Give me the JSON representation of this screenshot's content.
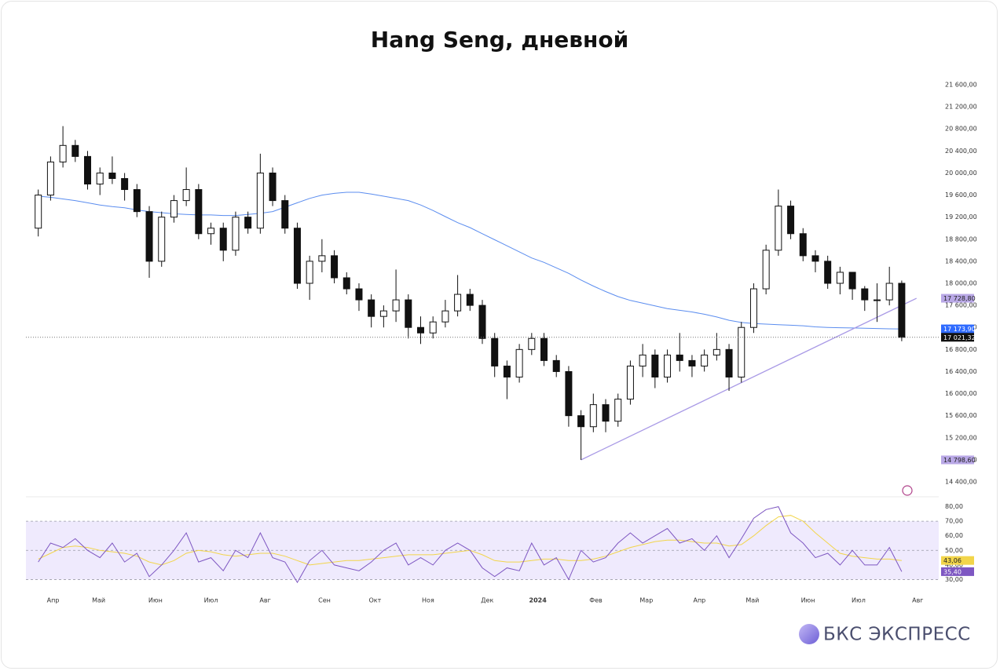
{
  "chart_data": [
    {
      "type": "candlestick",
      "title": "Hang Seng, дневной",
      "x": [
        1,
        2,
        3,
        4,
        5,
        6,
        7,
        8,
        9,
        10,
        11,
        12,
        13,
        14,
        15,
        16,
        17,
        18,
        19,
        20,
        21,
        22,
        23,
        24,
        25,
        26,
        27,
        28,
        29,
        30,
        31,
        32,
        33,
        34,
        35,
        36,
        37,
        38,
        39,
        40,
        41,
        42,
        43,
        44,
        45,
        46,
        47,
        48,
        49,
        50,
        51,
        52,
        53,
        54,
        55,
        56,
        57,
        58,
        59,
        60,
        61,
        62,
        63,
        64,
        65,
        66,
        67,
        68,
        69,
        70,
        71
      ],
      "open": [
        19000,
        19600,
        20200,
        20500,
        20300,
        19800,
        20000,
        19900,
        19700,
        19300,
        18400,
        19200,
        19500,
        19700,
        18900,
        19000,
        18600,
        19200,
        19000,
        20000,
        19500,
        19000,
        18000,
        18400,
        18500,
        18100,
        17900,
        17700,
        17400,
        17500,
        17700,
        17200,
        17100,
        17300,
        17500,
        17800,
        17600,
        17000,
        16500,
        16300,
        16800,
        17000,
        16600,
        16400,
        15600,
        15400,
        15800,
        15500,
        15900,
        16500,
        16700,
        16300,
        16700,
        16600,
        16500,
        16700,
        16800,
        16300,
        17200,
        17900,
        18600,
        19400,
        18900,
        18500,
        18400,
        18000,
        18200,
        17900,
        17700,
        17700,
        18000
      ],
      "high": [
        19700,
        20300,
        20850,
        20600,
        20400,
        20100,
        20300,
        20000,
        19800,
        19400,
        19300,
        19600,
        20100,
        19800,
        19100,
        19100,
        19300,
        19300,
        20350,
        20100,
        19600,
        19100,
        18500,
        18800,
        18600,
        18200,
        18000,
        17800,
        17600,
        18250,
        17800,
        17400,
        17400,
        17700,
        18150,
        17900,
        17700,
        17100,
        16600,
        16900,
        17100,
        17100,
        16700,
        16500,
        15700,
        16000,
        15900,
        16000,
        16600,
        16900,
        16800,
        16800,
        17100,
        16700,
        16800,
        17100,
        16900,
        17300,
        18000,
        18700,
        19700,
        19500,
        19000,
        18600,
        18500,
        18300,
        18200,
        17950,
        18000,
        18300,
        18050
      ],
      "low": [
        18850,
        19500,
        20100,
        20200,
        19700,
        19600,
        19800,
        19500,
        19200,
        18100,
        18300,
        19100,
        19400,
        18800,
        18700,
        18400,
        18500,
        18900,
        18900,
        19400,
        18900,
        17900,
        17700,
        18200,
        18000,
        17800,
        17500,
        17200,
        17200,
        17300,
        17000,
        16900,
        17000,
        17200,
        17400,
        17500,
        16900,
        16300,
        15900,
        16200,
        16700,
        16500,
        16300,
        15400,
        14798.6,
        15300,
        15300,
        15400,
        15800,
        16300,
        16100,
        16200,
        16400,
        16300,
        16400,
        16600,
        16050,
        16200,
        17100,
        17800,
        18500,
        18800,
        18400,
        18200,
        17900,
        17800,
        17700,
        17500,
        17300,
        17600,
        16950
      ],
      "close": [
        19600,
        20200,
        20500,
        20300,
        19800,
        20000,
        19900,
        19700,
        19300,
        18400,
        19200,
        19500,
        19700,
        18900,
        19000,
        18600,
        19200,
        19000,
        20000,
        19500,
        19000,
        18000,
        18400,
        18500,
        18100,
        17900,
        17700,
        17400,
        17500,
        17700,
        17200,
        17100,
        17300,
        17500,
        17800,
        17600,
        17000,
        16500,
        16300,
        16800,
        17000,
        16600,
        16400,
        15600,
        15400,
        15800,
        15500,
        15900,
        16500,
        16700,
        16300,
        16700,
        16600,
        16500,
        16700,
        16800,
        16300,
        17200,
        17900,
        18600,
        19400,
        18900,
        18500,
        18400,
        18000,
        18200,
        17900,
        17700,
        17700,
        18000,
        17021.32
      ],
      "last_close_label": "17 021,32",
      "ma": {
        "color": "#5b8def",
        "values": [
          19580,
          19560,
          19530,
          19500,
          19460,
          19420,
          19390,
          19370,
          19330,
          19300,
          19280,
          19260,
          19250,
          19240,
          19240,
          19230,
          19230,
          19250,
          19270,
          19300,
          19380,
          19460,
          19540,
          19600,
          19630,
          19650,
          19650,
          19620,
          19580,
          19540,
          19500,
          19420,
          19320,
          19210,
          19100,
          19010,
          18900,
          18790,
          18680,
          18570,
          18460,
          18380,
          18280,
          18180,
          18060,
          17950,
          17850,
          17760,
          17690,
          17640,
          17590,
          17540,
          17510,
          17480,
          17440,
          17390,
          17330,
          17290,
          17270,
          17260,
          17250,
          17240,
          17230,
          17210,
          17200,
          17195,
          17190,
          17185,
          17180,
          17175,
          17173.9
        ],
        "last_label": "17 173,90"
      },
      "trendline": {
        "color": "#a99ae6",
        "x": [
          45,
          72.2
        ],
        "values": [
          14798.6,
          17728.8
        ],
        "value_labels": [
          "14 798,60",
          "17 728,80"
        ]
      },
      "xlim": [
        0,
        74
      ],
      "ylim": [
        14400,
        21600
      ],
      "yticks": [
        {
          "value": 14400,
          "label": "14 400,00"
        },
        {
          "value": 14800,
          "label": "14 800,00"
        },
        {
          "value": 15200,
          "label": "15 200,00"
        },
        {
          "value": 15600,
          "label": "15 600,00"
        },
        {
          "value": 16000,
          "label": "16 000,00"
        },
        {
          "value": 16400,
          "label": "16 400,00"
        },
        {
          "value": 16800,
          "label": "16 800,00"
        },
        {
          "value": 17200,
          "label": "17 200,00"
        },
        {
          "value": 17600,
          "label": "17 600,00"
        },
        {
          "value": 18000,
          "label": "18 000,00"
        },
        {
          "value": 18400,
          "label": "18 400,00"
        },
        {
          "value": 18800,
          "label": "18 800,00"
        },
        {
          "value": 19200,
          "label": "19 200,00"
        },
        {
          "value": 19600,
          "label": "19 600,00"
        },
        {
          "value": 20000,
          "label": "20 000,00"
        },
        {
          "value": 20400,
          "label": "20 400,00"
        },
        {
          "value": 20800,
          "label": "20 800,00"
        },
        {
          "value": 21200,
          "label": "21 200,00"
        },
        {
          "value": 21600,
          "label": "21 600,00"
        }
      ]
    },
    {
      "type": "rsi",
      "x": [
        1,
        2,
        3,
        4,
        5,
        6,
        7,
        8,
        9,
        10,
        11,
        12,
        13,
        14,
        15,
        16,
        17,
        18,
        19,
        20,
        21,
        22,
        23,
        24,
        25,
        26,
        27,
        28,
        29,
        30,
        31,
        32,
        33,
        34,
        35,
        36,
        37,
        38,
        39,
        40,
        41,
        42,
        43,
        44,
        45,
        46,
        47,
        48,
        49,
        50,
        51,
        52,
        53,
        54,
        55,
        56,
        57,
        58,
        59,
        60,
        61,
        62,
        63,
        64,
        65,
        66,
        67,
        68,
        69,
        70,
        71
      ],
      "rsi": {
        "color": "#7e57c2",
        "values": [
          42,
          55,
          52,
          58,
          50,
          45,
          55,
          42,
          48,
          32,
          40,
          50,
          62,
          42,
          45,
          36,
          50,
          45,
          62,
          45,
          42,
          28,
          43,
          50,
          40,
          38,
          36,
          42,
          50,
          55,
          40,
          45,
          40,
          50,
          55,
          50,
          38,
          32,
          38,
          36,
          55,
          40,
          45,
          30,
          50,
          42,
          45,
          55,
          62,
          55,
          60,
          65,
          55,
          58,
          50,
          60,
          45,
          58,
          72,
          78,
          80,
          62,
          55,
          45,
          48,
          40,
          50,
          40,
          40,
          52,
          35.4
        ],
        "last_label": "35,40"
      },
      "rsi_ma": {
        "color": "#f2d54a",
        "values": [
          44,
          48,
          52,
          53,
          52,
          50,
          49,
          48,
          46,
          42,
          40,
          43,
          48,
          50,
          49,
          47,
          46,
          47,
          48,
          48,
          46,
          43,
          40,
          41,
          42,
          43,
          43,
          44,
          45,
          46,
          47,
          47,
          47,
          48,
          49,
          50,
          47,
          43,
          42,
          42,
          43,
          44,
          44,
          43,
          43,
          44,
          46,
          49,
          52,
          54,
          56,
          57,
          57,
          56,
          55,
          55,
          53,
          54,
          60,
          67,
          73,
          74,
          70,
          62,
          55,
          48,
          46,
          45,
          44,
          44,
          43.06
        ],
        "last_label": "43,06"
      },
      "band": [
        30,
        70
      ],
      "midline": 50,
      "xlim": [
        0,
        74
      ],
      "xticks": [
        {
          "value": 2.2,
          "label": "Апр"
        },
        {
          "value": 5.9,
          "label": "Май"
        },
        {
          "value": 10.5,
          "label": "Июн"
        },
        {
          "value": 15.0,
          "label": "Июл"
        },
        {
          "value": 19.4,
          "label": "Авг"
        },
        {
          "value": 24.2,
          "label": "Сен"
        },
        {
          "value": 28.3,
          "label": "Окт"
        },
        {
          "value": 32.6,
          "label": "Ноя"
        },
        {
          "value": 37.4,
          "label": "Дек"
        },
        {
          "value": 41.5,
          "label": "2024"
        },
        {
          "value": 46.2,
          "label": "Фев"
        },
        {
          "value": 50.3,
          "label": "Мар"
        },
        {
          "value": 54.6,
          "label": "Апр"
        },
        {
          "value": 58.9,
          "label": "Май"
        },
        {
          "value": 63.4,
          "label": "Июн"
        },
        {
          "value": 67.5,
          "label": "Июл"
        },
        {
          "value": 72.3,
          "label": "Авг"
        }
      ],
      "ylim": [
        27,
        83
      ],
      "yticks": [
        {
          "value": 30,
          "label": "30,00"
        },
        {
          "value": 40,
          "label": "40,00"
        },
        {
          "value": 50,
          "label": "50,00"
        },
        {
          "value": 60,
          "label": "60,00"
        },
        {
          "value": 70,
          "label": "70,00"
        },
        {
          "value": 80,
          "label": "80,00"
        }
      ]
    }
  ],
  "logo": "БКС ЭКСПРЕСС"
}
